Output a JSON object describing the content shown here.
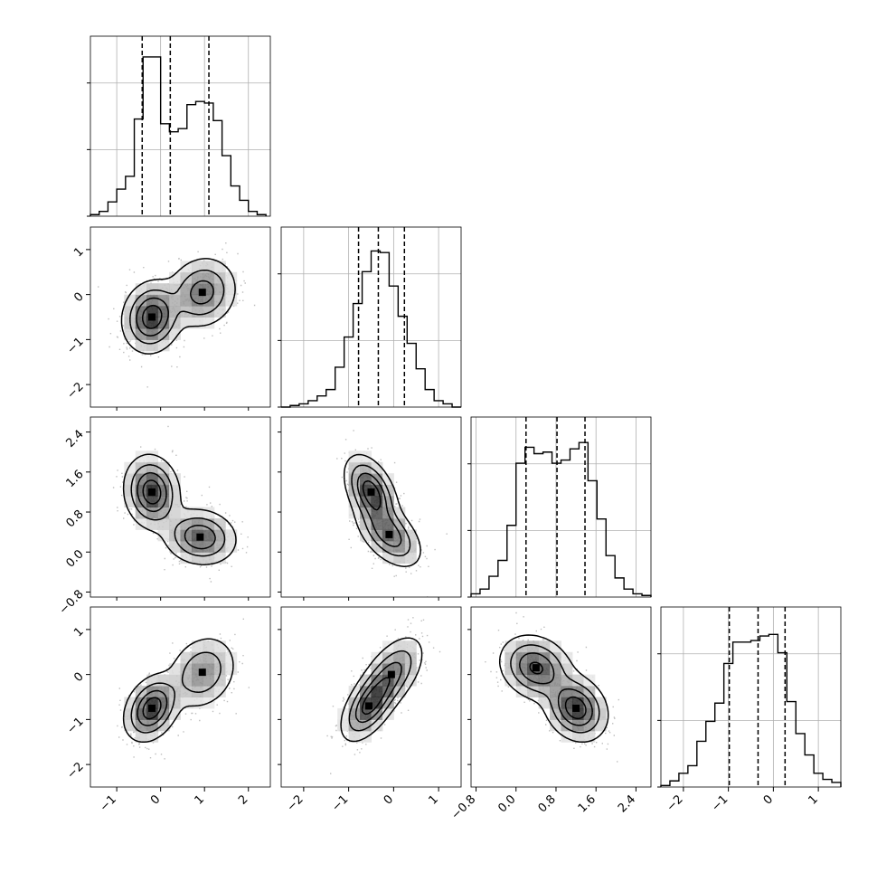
{
  "chart_data": {
    "type": "corner",
    "n_params": 4,
    "grid": true,
    "colors": {
      "hist": "#000000",
      "grid": "#b0b0b0",
      "points": "#6e6e6e",
      "density": "#000000"
    },
    "params": [
      {
        "range": [
          -1.6,
          2.5
        ],
        "ticks": [
          -1,
          0,
          1,
          2
        ],
        "tick_labels": [
          "−1",
          "0",
          "1",
          "2"
        ],
        "quantiles": [
          -0.42,
          0.22,
          1.1
        ],
        "hist_bin_edges": [
          -1.6,
          -1.4,
          -1.2,
          -1.0,
          -0.8,
          -0.6,
          -0.4,
          -0.2,
          0.0,
          0.2,
          0.4,
          0.6,
          0.8,
          1.0,
          1.2,
          1.4,
          1.6,
          1.8,
          2.0,
          2.2,
          2.4
        ],
        "hist_counts": [
          0.01,
          0.03,
          0.09,
          0.17,
          0.25,
          0.61,
          1.0,
          1.0,
          0.58,
          0.53,
          0.55,
          0.7,
          0.72,
          0.71,
          0.6,
          0.38,
          0.19,
          0.1,
          0.03,
          0.01
        ]
      },
      {
        "range": [
          -2.5,
          1.5
        ],
        "ticks": [
          -2,
          -1,
          0,
          1
        ],
        "tick_labels": [
          "−2",
          "−1",
          "0",
          "1"
        ],
        "quantiles": [
          -0.78,
          -0.34,
          0.24
        ],
        "hist_bin_edges": [
          -2.5,
          -2.3,
          -2.1,
          -1.9,
          -1.7,
          -1.5,
          -1.3,
          -1.1,
          -0.9,
          -0.7,
          -0.5,
          -0.3,
          -0.1,
          0.1,
          0.3,
          0.5,
          0.7,
          0.9,
          1.1,
          1.3,
          1.5
        ],
        "hist_counts": [
          0.0,
          0.01,
          0.02,
          0.04,
          0.07,
          0.11,
          0.25,
          0.44,
          0.65,
          0.85,
          0.98,
          0.97,
          0.76,
          0.57,
          0.4,
          0.24,
          0.11,
          0.04,
          0.02,
          0.0
        ]
      },
      {
        "range": [
          -0.9,
          2.7
        ],
        "ticks": [
          -0.8,
          0.0,
          0.8,
          1.6,
          2.4
        ],
        "tick_labels": [
          "−0.8",
          "0.0",
          "0.8",
          "1.6",
          "2.4"
        ],
        "quantiles": [
          0.2,
          0.82,
          1.38
        ],
        "hist_bin_edges": [
          -0.9,
          -0.72,
          -0.54,
          -0.36,
          -0.18,
          0.0,
          0.18,
          0.36,
          0.54,
          0.72,
          0.9,
          1.08,
          1.26,
          1.44,
          1.62,
          1.8,
          1.98,
          2.16,
          2.34,
          2.52,
          2.7
        ],
        "hist_counts": [
          0.02,
          0.05,
          0.13,
          0.23,
          0.45,
          0.84,
          0.94,
          0.9,
          0.91,
          0.84,
          0.86,
          0.93,
          0.97,
          0.73,
          0.49,
          0.26,
          0.12,
          0.05,
          0.02,
          0.01
        ]
      },
      {
        "range": [
          -2.5,
          1.5
        ],
        "ticks": [
          -2,
          -1,
          0,
          1
        ],
        "tick_labels": [
          "−2",
          "−1",
          "0",
          "1"
        ],
        "quantiles": [
          -0.98,
          -0.34,
          0.26
        ],
        "hist_bin_edges": [
          -2.5,
          -2.3,
          -2.1,
          -1.9,
          -1.7,
          -1.5,
          -1.3,
          -1.1,
          -0.9,
          -0.7,
          -0.5,
          -0.3,
          -0.1,
          0.1,
          0.3,
          0.5,
          0.7,
          0.9,
          1.1,
          1.3,
          1.5
        ],
        "hist_counts": [
          0.01,
          0.04,
          0.09,
          0.14,
          0.3,
          0.43,
          0.55,
          0.81,
          0.95,
          0.95,
          0.96,
          0.99,
          1.0,
          0.88,
          0.56,
          0.35,
          0.21,
          0.09,
          0.05,
          0.03
        ]
      }
    ],
    "pairs": [
      {
        "x": 0,
        "y": 1,
        "modes": [
          {
            "mean": [
              -0.2,
              -0.5
            ],
            "sd": [
              0.32,
              0.38
            ],
            "r": 0.1,
            "w": 0.55
          },
          {
            "mean": [
              0.95,
              0.05
            ],
            "sd": [
              0.38,
              0.38
            ],
            "r": 0.1,
            "w": 0.45
          }
        ]
      },
      {
        "x": 0,
        "y": 2,
        "modes": [
          {
            "mean": [
              -0.2,
              1.2
            ],
            "sd": [
              0.3,
              0.35
            ],
            "r": -0.1,
            "w": 0.55
          },
          {
            "mean": [
              0.9,
              0.3
            ],
            "sd": [
              0.4,
              0.27
            ],
            "r": -0.1,
            "w": 0.45
          }
        ]
      },
      {
        "x": 1,
        "y": 2,
        "modes": [
          {
            "mean": [
              -0.5,
              1.2
            ],
            "sd": [
              0.28,
              0.35
            ],
            "r": -0.45,
            "w": 0.55
          },
          {
            "mean": [
              -0.1,
              0.35
            ],
            "sd": [
              0.35,
              0.32
            ],
            "r": -0.5,
            "w": 0.45
          }
        ]
      },
      {
        "x": 0,
        "y": 3,
        "modes": [
          {
            "mean": [
              -0.2,
              -0.75
            ],
            "sd": [
              0.3,
              0.35
            ],
            "r": 0.3,
            "w": 0.55
          },
          {
            "mean": [
              0.95,
              0.05
            ],
            "sd": [
              0.38,
              0.4
            ],
            "r": 0.2,
            "w": 0.45
          }
        ]
      },
      {
        "x": 1,
        "y": 3,
        "modes": [
          {
            "mean": [
              -0.55,
              -0.7
            ],
            "sd": [
              0.3,
              0.38
            ],
            "r": 0.55,
            "w": 0.5
          },
          {
            "mean": [
              -0.05,
              0.0
            ],
            "sd": [
              0.35,
              0.42
            ],
            "r": 0.55,
            "w": 0.5
          }
        ]
      },
      {
        "x": 2,
        "y": 3,
        "modes": [
          {
            "mean": [
              0.4,
              0.15
            ],
            "sd": [
              0.35,
              0.35
            ],
            "r": -0.2,
            "w": 0.5
          },
          {
            "mean": [
              1.2,
              -0.75
            ],
            "sd": [
              0.3,
              0.35
            ],
            "r": -0.2,
            "w": 0.5
          }
        ]
      }
    ]
  }
}
